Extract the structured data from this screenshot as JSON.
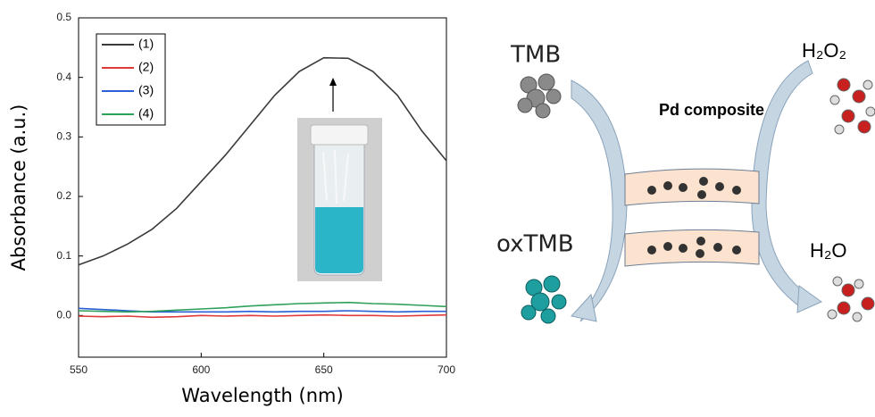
{
  "chart_data": {
    "type": "line",
    "x_label": "Wavelength (nm)",
    "y_label": "Absorbance (a.u.)",
    "x": [
      550,
      560,
      570,
      580,
      590,
      600,
      610,
      620,
      630,
      640,
      650,
      660,
      670,
      680,
      690,
      700
    ],
    "series": [
      {
        "name": "(1)",
        "color": "#3a3a3a",
        "values": [
          0.085,
          0.1,
          0.12,
          0.145,
          0.18,
          0.225,
          0.27,
          0.32,
          0.37,
          0.41,
          0.433,
          0.432,
          0.41,
          0.37,
          0.31,
          0.26
        ]
      },
      {
        "name": "(2)",
        "color": "#e03a3a",
        "values": [
          -0.001,
          -0.002,
          -0.001,
          -0.003,
          -0.002,
          0.0,
          -0.001,
          0.0,
          -0.001,
          0.0,
          0.001,
          0.0,
          0.0,
          -0.001,
          0.0,
          0.001
        ]
      },
      {
        "name": "(3)",
        "color": "#2a5fd6",
        "values": [
          0.012,
          0.01,
          0.008,
          0.006,
          0.006,
          0.006,
          0.006,
          0.007,
          0.006,
          0.007,
          0.007,
          0.008,
          0.007,
          0.006,
          0.007,
          0.007
        ]
      },
      {
        "name": "(4)",
        "color": "#2fa05a",
        "values": [
          0.008,
          0.007,
          0.006,
          0.007,
          0.009,
          0.011,
          0.013,
          0.016,
          0.018,
          0.02,
          0.021,
          0.022,
          0.02,
          0.019,
          0.017,
          0.015
        ]
      }
    ],
    "xlim": [
      550,
      700
    ],
    "xticks": [
      550,
      600,
      650,
      700
    ],
    "ylim": [
      -0.07,
      0.5
    ],
    "yticks": [
      {
        "value": 0,
        "label": "0.0"
      },
      0.1,
      0.2,
      0.3,
      0.4,
      0.5
    ],
    "legend": "upper-left",
    "grid": false
  },
  "diagram": {
    "reactant": "TMB",
    "product": "oxTMB",
    "catalyst": "Pd composite",
    "oxidant": "H₂O₂",
    "byproduct": "H₂O"
  }
}
